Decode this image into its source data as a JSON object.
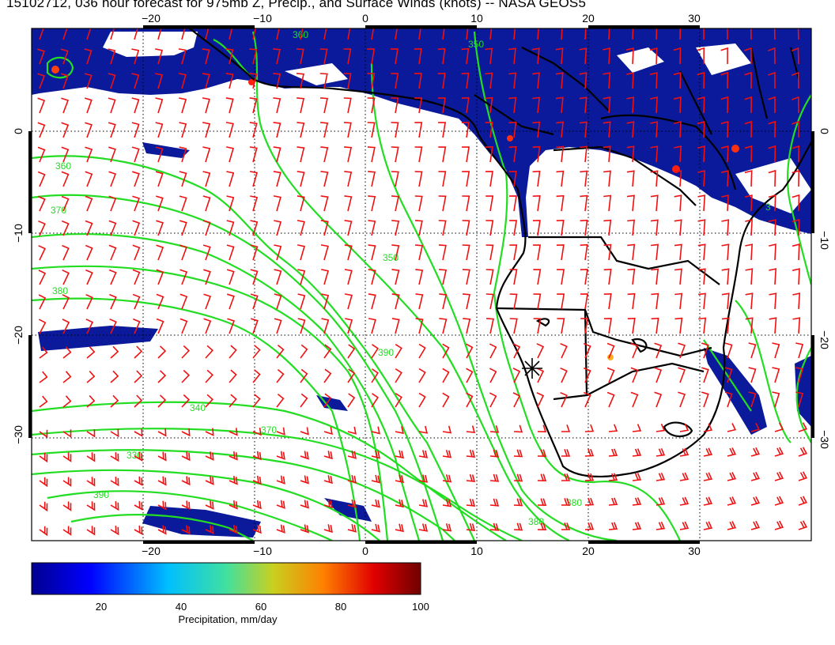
{
  "title": "15102712, 036 hour forecast for 975mb Z, Precip., and Surface Winds (knots) -- NASA GEOS5",
  "map": {
    "lon_ticks": [
      "−20",
      "−10",
      "0",
      "10",
      "20",
      "30"
    ],
    "lat_ticks": [
      "0",
      "−10",
      "−20",
      "−30"
    ],
    "lon_range": [
      -30,
      40
    ],
    "lat_range": [
      -40,
      10
    ],
    "contour_color": "#22dd22",
    "barb_color": "#ee1111",
    "precip_color": "#0a1a9a",
    "contour_labels": [
      "360",
      "370",
      "380",
      "390",
      "350",
      "340",
      "330",
      "380",
      "390",
      "370",
      "360",
      "350",
      "380",
      "3"
    ],
    "marker": "asterisk-marker"
  },
  "colorbar": {
    "ticks": [
      "20",
      "40",
      "60",
      "80",
      "100"
    ],
    "min": 0,
    "max": 100,
    "label": "Precipitation, mm/day",
    "colors": [
      "#00008f",
      "#0000ff",
      "#00bfff",
      "#40e0a0",
      "#c8d020",
      "#ff8000",
      "#e00000",
      "#700000"
    ]
  }
}
